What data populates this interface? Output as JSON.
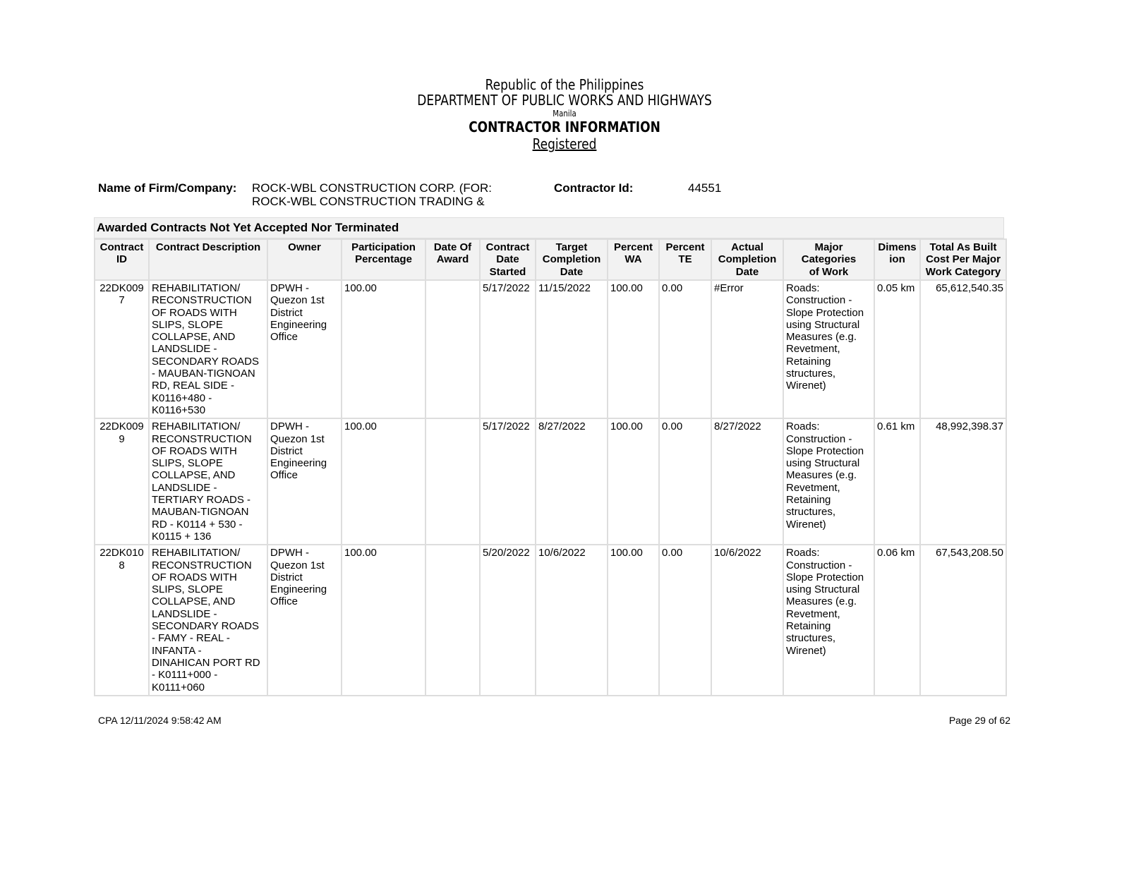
{
  "header": {
    "line1": "Republic of the Philippines",
    "line2": "DEPARTMENT OF PUBLIC WORKS AND HIGHWAYS",
    "line3": "Manila",
    "title": "CONTRACTOR INFORMATION",
    "status": "Registered"
  },
  "firm": {
    "name_label": "Name of Firm/Company:",
    "name_value": "ROCK-WBL CONSTRUCTION CORP. (FOR:\nROCK-WBL CONSTRUCTION TRADING &\nSERVICES)",
    "id_label": "Contractor Id:",
    "id_value": "44551"
  },
  "section_title": "Awarded Contracts Not Yet Accepted Nor Terminated",
  "columns": [
    "Contract\nID",
    "Contract Description",
    "Owner",
    "Participation\nPercentage",
    "Date Of\nAward",
    "Contract\nDate\nStarted",
    "Target\nCompletion\nDate",
    "Percent\nWA",
    "Percent\nTE",
    "Actual\nCompletion\nDate",
    "Major\nCategories\nof Work",
    "Dimens\nion",
    "Total As Built\nCost Per Major\nWork Category"
  ],
  "rows": [
    [
      "22DK009\n7",
      "REHABILITATION/\nRECONSTRUCTION\nOF ROADS WITH\nSLIPS, SLOPE\nCOLLAPSE, AND\nLANDSLIDE -\nSECONDARY ROADS\n- MAUBAN-TIGNOAN\nRD, REAL SIDE -\nK0116+480 -\nK0116+530",
      "DPWH -\nQuezon 1st\nDistrict\nEngineering\nOffice",
      "100.00",
      "",
      "5/17/2022",
      "11/15/2022",
      "100.00",
      "0.00",
      "#Error",
      "Roads:\nConstruction -\nSlope Protection\nusing Structural\nMeasures (e.g.\nRevetment,\nRetaining\nstructures,\nWirenet)",
      "0.05 km",
      "65,612,540.35"
    ],
    [
      "22DK009\n9",
      "REHABILITATION/\nRECONSTRUCTION\nOF ROADS WITH\nSLIPS, SLOPE\nCOLLAPSE, AND\nLANDSLIDE -\nTERTIARY ROADS -\nMAUBAN-TIGNOAN\nRD - K0114 + 530 -\nK0115 + 136",
      "DPWH -\nQuezon 1st\nDistrict\nEngineering\nOffice",
      "100.00",
      "",
      "5/17/2022",
      "8/27/2022",
      "100.00",
      "0.00",
      "8/27/2022",
      "Roads:\nConstruction -\nSlope Protection\nusing Structural\nMeasures (e.g.\nRevetment,\nRetaining\nstructures,\nWirenet)",
      "0.61 km",
      "48,992,398.37"
    ],
    [
      "22DK010\n8",
      "REHABILITATION/\nRECONSTRUCTION\nOF ROADS WITH\nSLIPS, SLOPE\nCOLLAPSE, AND\nLANDSLIDE -\nSECONDARY ROADS\n- FAMY - REAL -\nINFANTA -\nDINAHICAN PORT RD\n- K0111+000 -\nK0111+060",
      "DPWH -\nQuezon 1st\nDistrict\nEngineering\nOffice",
      "100.00",
      "",
      "5/20/2022",
      "10/6/2022",
      "100.00",
      "0.00",
      "10/6/2022",
      "Roads:\nConstruction -\nSlope Protection\nusing Structural\nMeasures (e.g.\nRevetment,\nRetaining\nstructures,\nWirenet)",
      "0.06 km",
      "67,543,208.50"
    ]
  ],
  "footer": {
    "left": "CPA 12/11/2024 9:58:42 AM",
    "right": "Page 29 of 62"
  }
}
